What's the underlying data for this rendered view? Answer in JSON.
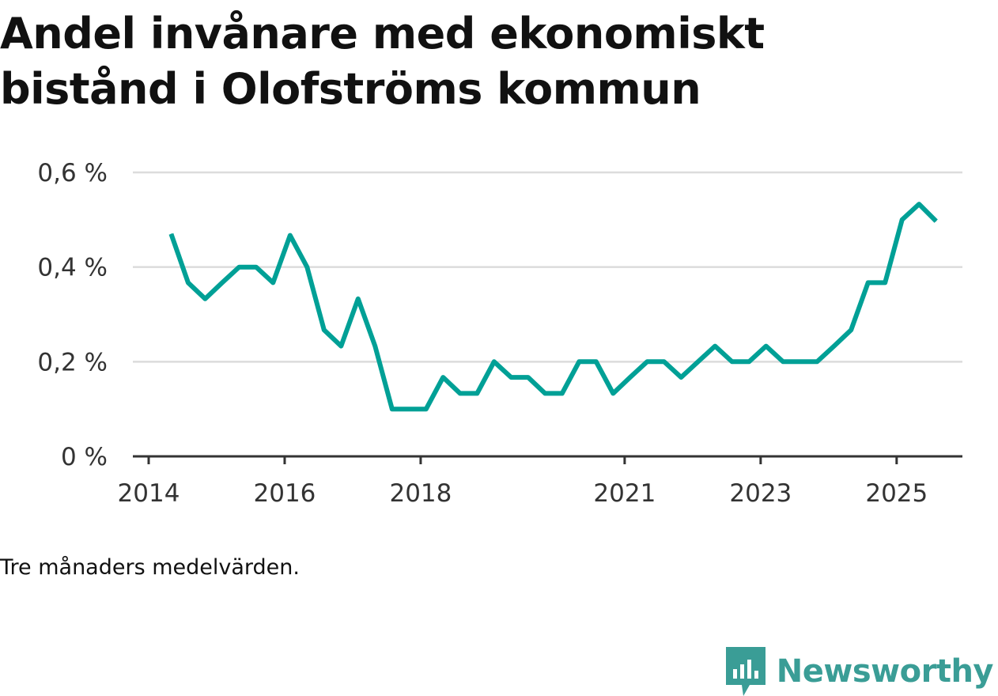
{
  "title": "Andel invånare med ekonomiskt bistånd i Olofströms kommun",
  "note": "Tre månaders medelvärden.",
  "brand": {
    "name": "Newsworthy",
    "icon": "bar-chart-speech-bubble-icon"
  },
  "colors": {
    "line": "#00a096",
    "grid": "#dcdcdc",
    "axis": "#333333",
    "brand": "#3a9d96"
  },
  "chart_data": {
    "type": "line",
    "title": "Andel invånare med ekonomiskt bistånd i Olofströms kommun",
    "xlabel": "",
    "ylabel": "",
    "unit": "%",
    "ylim": [
      0,
      0.6
    ],
    "yticks": [
      0,
      0.2,
      0.4,
      0.6
    ],
    "ytick_labels": [
      "0 %",
      "0,2 %",
      "0,4 %",
      "0,6 %"
    ],
    "xlim": [
      2014,
      2026.2
    ],
    "xticks": [
      2014,
      2016,
      2018,
      2021,
      2023,
      2025
    ],
    "xtick_labels": [
      "2014",
      "2016",
      "2018",
      "2021",
      "2023",
      "2025"
    ],
    "grid": true,
    "legend": "none",
    "series": [
      {
        "name": "Andel invånare med ekonomiskt bistånd",
        "x": [
          2014.33,
          2014.58,
          2014.83,
          2015.08,
          2015.33,
          2015.58,
          2015.83,
          2016.08,
          2016.33,
          2016.58,
          2016.83,
          2017.08,
          2017.33,
          2017.58,
          2017.83,
          2018.08,
          2018.33,
          2018.58,
          2018.83,
          2019.08,
          2019.33,
          2019.58,
          2019.83,
          2020.08,
          2020.33,
          2020.58,
          2020.83,
          2021.08,
          2021.33,
          2021.58,
          2021.83,
          2022.08,
          2022.33,
          2022.58,
          2022.83,
          2023.08,
          2023.33,
          2023.58,
          2023.83,
          2024.08,
          2024.33,
          2024.58,
          2024.83,
          2025.08,
          2025.33,
          2025.58
        ],
        "values": [
          0.47,
          0.367,
          0.333,
          0.367,
          0.4,
          0.4,
          0.367,
          0.467,
          0.4,
          0.267,
          0.233,
          0.333,
          0.233,
          0.1,
          0.1,
          0.1,
          0.167,
          0.133,
          0.133,
          0.2,
          0.167,
          0.167,
          0.133,
          0.133,
          0.2,
          0.2,
          0.133,
          0.167,
          0.2,
          0.2,
          0.167,
          0.2,
          0.233,
          0.2,
          0.2,
          0.233,
          0.2,
          0.2,
          0.2,
          0.233,
          0.267,
          0.367,
          0.367,
          0.5,
          0.533,
          0.497
        ]
      }
    ]
  }
}
